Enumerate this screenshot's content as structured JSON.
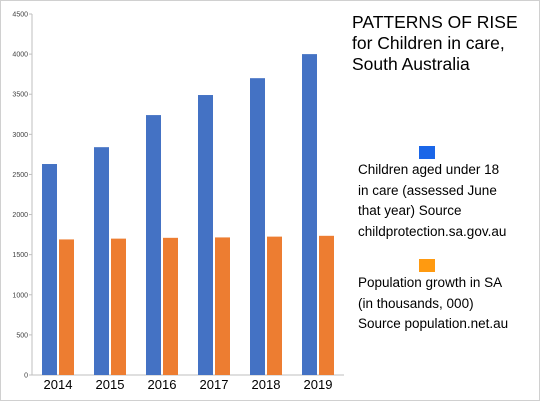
{
  "chart_data": {
    "type": "bar",
    "title_lines": [
      "PATTERNS OF RISE",
      "for Children in care,",
      "South Australia"
    ],
    "categories": [
      "2014",
      "2015",
      "2016",
      "2017",
      "2018",
      "2019"
    ],
    "ylim": [
      0,
      4500
    ],
    "yticks": [
      0,
      500,
      1000,
      1500,
      2000,
      2500,
      3000,
      3500,
      4000,
      4500
    ],
    "grid": false,
    "legend_position": "right",
    "series": [
      {
        "legend_lines": [
          "Children aged under 18",
          "in care (assessed June",
          "that year) Source",
          "childprotection.sa.gov.au"
        ],
        "color": "#4472c4",
        "values": [
          2630,
          2840,
          3240,
          3490,
          3700,
          4000
        ]
      },
      {
        "legend_lines": [
          "Population growth in SA",
          "(in thousands, 000)",
          "Source population.net.au"
        ],
        "color": "#ed7d31",
        "values": [
          1690,
          1700,
          1710,
          1715,
          1725,
          1735
        ]
      }
    ],
    "legend_swatch_colors": [
      "#1a66e8",
      "#ff9a10"
    ]
  }
}
